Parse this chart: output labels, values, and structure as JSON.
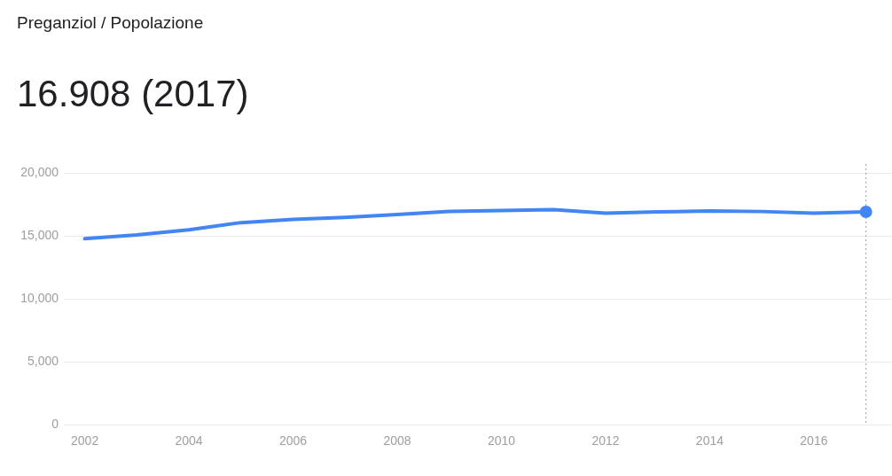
{
  "chart_data": {
    "type": "line",
    "title": "Preganziol / Popolazione",
    "x": [
      2002,
      2003,
      2004,
      2005,
      2006,
      2007,
      2008,
      2009,
      2010,
      2011,
      2012,
      2013,
      2014,
      2015,
      2016,
      2017
    ],
    "series": [
      {
        "color": "#4285f4",
        "values": [
          14770,
          15070,
          15480,
          16050,
          16300,
          16470,
          16690,
          16940,
          17010,
          17080,
          16800,
          16900,
          16970,
          16930,
          16800,
          16908
        ]
      }
    ],
    "xlim": [
      2001.7,
      2017.5
    ],
    "xticks": [
      2002,
      2004,
      2006,
      2008,
      2010,
      2012,
      2014,
      2016
    ],
    "ylim": [
      0,
      20000
    ],
    "yticks": [
      {
        "value": 0,
        "label": "0"
      },
      {
        "value": 5000,
        "label": "5,000"
      },
      {
        "value": 10000,
        "label": "10,000"
      },
      {
        "value": 15000,
        "label": "15,000"
      },
      {
        "value": 20000,
        "label": "20,000"
      }
    ],
    "grid": "y",
    "legend": false,
    "marker": "none",
    "line_style": "solid",
    "annotations": [
      "16.908 (2017)"
    ],
    "ref_lines": [
      {
        "axis": "x",
        "value": 2017,
        "color": "#9e9e9e",
        "line_style": "dotted"
      }
    ]
  }
}
